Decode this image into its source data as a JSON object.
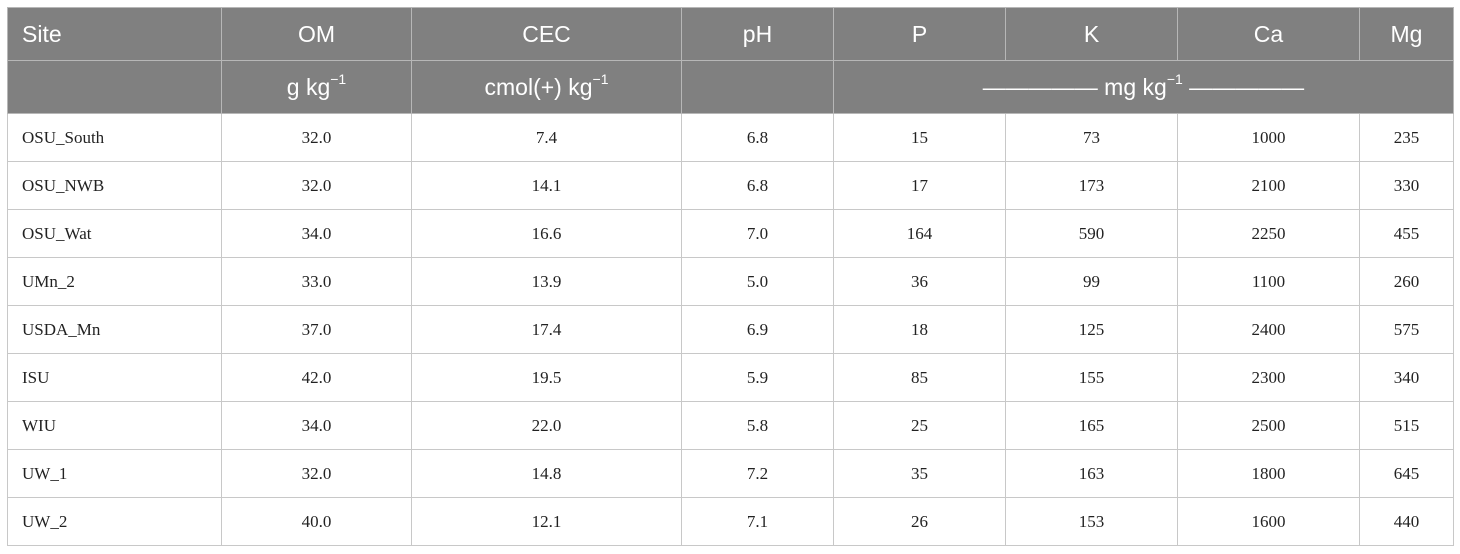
{
  "headers": [
    "Site",
    "OM",
    "CEC",
    "pH",
    "P",
    "K",
    "Ca",
    "Mg"
  ],
  "units": {
    "site": "",
    "om_base": "g kg",
    "om_exp": "−1",
    "cec_base": "cmol(+) kg",
    "cec_exp": "−1",
    "ph": "",
    "mg_pre": "————— mg kg",
    "mg_exp": "−1",
    "mg_post": " —————"
  },
  "rows": [
    [
      "OSU_South",
      "32.0",
      "7.4",
      "6.8",
      "15",
      "73",
      "1000",
      "235"
    ],
    [
      "OSU_NWB",
      "32.0",
      "14.1",
      "6.8",
      "17",
      "173",
      "2100",
      "330"
    ],
    [
      "OSU_Wat",
      "34.0",
      "16.6",
      "7.0",
      "164",
      "590",
      "2250",
      "455"
    ],
    [
      "UMn_2",
      "33.0",
      "13.9",
      "5.0",
      "36",
      "99",
      "1100",
      "260"
    ],
    [
      "USDA_Mn",
      "37.0",
      "17.4",
      "6.9",
      "18",
      "125",
      "2400",
      "575"
    ],
    [
      "ISU",
      "42.0",
      "19.5",
      "5.9",
      "85",
      "155",
      "2300",
      "340"
    ],
    [
      "WIU",
      "34.0",
      "22.0",
      "5.8",
      "25",
      "165",
      "2500",
      "515"
    ],
    [
      "UW_1",
      "32.0",
      "14.8",
      "7.2",
      "35",
      "163",
      "1800",
      "645"
    ],
    [
      "UW_2",
      "40.0",
      "12.1",
      "7.1",
      "26",
      "153",
      "1600",
      "440"
    ]
  ]
}
